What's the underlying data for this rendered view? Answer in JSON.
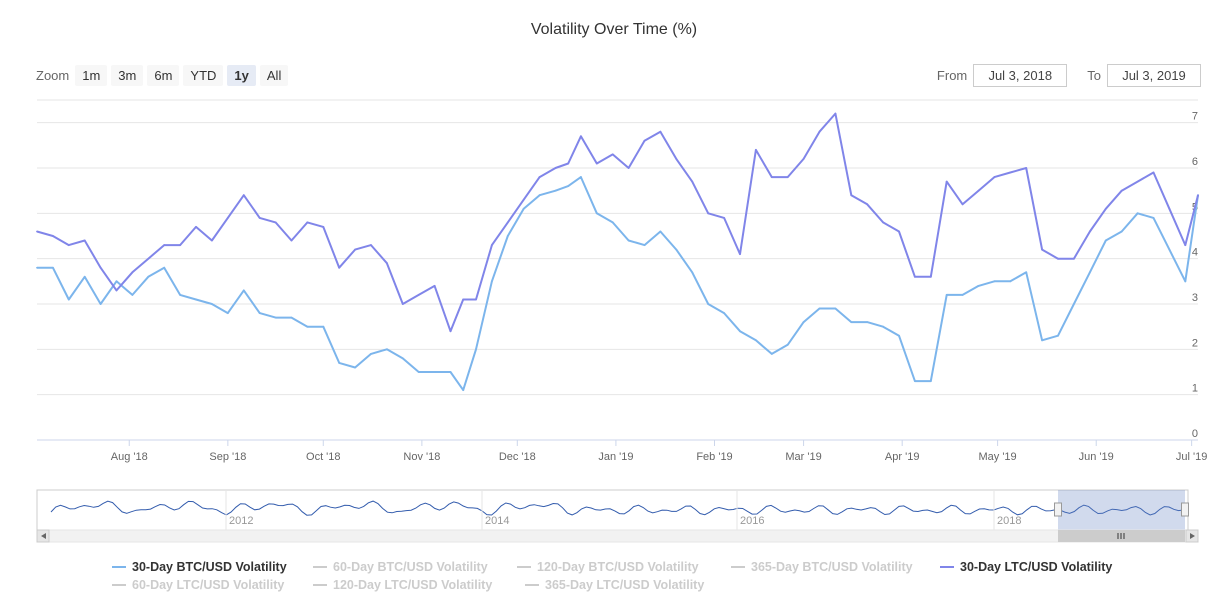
{
  "title": "Volatility Over Time (%)",
  "zoom": {
    "label": "Zoom",
    "buttons": [
      "1m",
      "3m",
      "6m",
      "YTD",
      "1y",
      "All"
    ],
    "active": "1y"
  },
  "range": {
    "from_label": "From",
    "from_value": "Jul 3, 2018",
    "to_label": "To",
    "to_value": "Jul 3, 2019"
  },
  "navigator": {
    "year_labels": [
      "2012",
      "2014",
      "2016",
      "2018"
    ]
  },
  "legend": [
    {
      "label": "30-Day BTC/USD Volatility",
      "color": "#7cb5ec",
      "visible": true
    },
    {
      "label": "60-Day BTC/USD Volatility",
      "color": "#cccccc",
      "visible": false
    },
    {
      "label": "120-Day BTC/USD Volatility",
      "color": "#cccccc",
      "visible": false
    },
    {
      "label": "365-Day BTC/USD Volatility",
      "color": "#cccccc",
      "visible": false
    },
    {
      "label": "30-Day LTC/USD Volatility",
      "color": "#8085e9",
      "visible": true
    },
    {
      "label": "60-Day LTC/USD Volatility",
      "color": "#cccccc",
      "visible": false
    },
    {
      "label": "120-Day LTC/USD Volatility",
      "color": "#cccccc",
      "visible": false
    },
    {
      "label": "365-Day LTC/USD Volatility",
      "color": "#cccccc",
      "visible": false
    }
  ],
  "chart_data": {
    "type": "line",
    "title": "Volatility Over Time (%)",
    "xlabel": "",
    "ylabel": "",
    "ylim": [
      0,
      7.5
    ],
    "y_ticks": [
      0,
      1,
      2,
      3,
      4,
      5,
      6,
      7
    ],
    "x_ticks": [
      "Aug '18",
      "Sep '18",
      "Oct '18",
      "Nov '18",
      "Dec '18",
      "Jan '19",
      "Feb '19",
      "Mar '19",
      "Apr '19",
      "May '19",
      "Jun '19",
      "Jul '19"
    ],
    "x_start": "2018-07-03",
    "x_end": "2019-07-03",
    "grid": true,
    "legend_position": "bottom",
    "series": [
      {
        "name": "30-Day BTC/USD Volatility",
        "color": "#7cb5ec",
        "x": [
          "2018-07-03",
          "2018-07-08",
          "2018-07-13",
          "2018-07-18",
          "2018-07-23",
          "2018-07-28",
          "2018-08-02",
          "2018-08-07",
          "2018-08-12",
          "2018-08-17",
          "2018-08-22",
          "2018-08-27",
          "2018-09-01",
          "2018-09-06",
          "2018-09-11",
          "2018-09-16",
          "2018-09-21",
          "2018-09-26",
          "2018-10-01",
          "2018-10-06",
          "2018-10-11",
          "2018-10-16",
          "2018-10-21",
          "2018-10-26",
          "2018-10-31",
          "2018-11-05",
          "2018-11-10",
          "2018-11-14",
          "2018-11-18",
          "2018-11-23",
          "2018-11-28",
          "2018-12-03",
          "2018-12-08",
          "2018-12-13",
          "2018-12-17",
          "2018-12-21",
          "2018-12-26",
          "2018-12-31",
          "2019-01-05",
          "2019-01-10",
          "2019-01-15",
          "2019-01-20",
          "2019-01-25",
          "2019-01-30",
          "2019-02-04",
          "2019-02-09",
          "2019-02-14",
          "2019-02-19",
          "2019-02-24",
          "2019-03-01",
          "2019-03-06",
          "2019-03-11",
          "2019-03-16",
          "2019-03-21",
          "2019-03-26",
          "2019-03-31",
          "2019-04-05",
          "2019-04-10",
          "2019-04-15",
          "2019-04-20",
          "2019-04-25",
          "2019-04-30",
          "2019-05-05",
          "2019-05-10",
          "2019-05-15",
          "2019-05-20",
          "2019-05-25",
          "2019-05-30",
          "2019-06-04",
          "2019-06-09",
          "2019-06-14",
          "2019-06-19",
          "2019-06-24",
          "2019-06-29",
          "2019-07-03"
        ],
        "y": [
          3.8,
          3.8,
          3.1,
          3.6,
          3.0,
          3.5,
          3.2,
          3.6,
          3.8,
          3.2,
          3.1,
          3.0,
          2.8,
          3.3,
          2.8,
          2.7,
          2.7,
          2.5,
          2.5,
          1.7,
          1.6,
          1.9,
          2.0,
          1.8,
          1.5,
          1.5,
          1.5,
          1.1,
          2.0,
          3.5,
          4.5,
          5.1,
          5.4,
          5.5,
          5.6,
          5.8,
          5.0,
          4.8,
          4.4,
          4.3,
          4.6,
          4.2,
          3.7,
          3.0,
          2.8,
          2.4,
          2.2,
          1.9,
          2.1,
          2.6,
          2.9,
          2.9,
          2.6,
          2.6,
          2.5,
          2.3,
          1.3,
          1.3,
          3.2,
          3.2,
          3.4,
          3.5,
          3.5,
          3.7,
          2.2,
          2.3,
          3.0,
          3.7,
          4.4,
          4.6,
          5.0,
          4.9,
          4.2,
          3.5,
          5.4
        ]
      },
      {
        "name": "30-Day LTC/USD Volatility",
        "color": "#8085e9",
        "x": [
          "2018-07-03",
          "2018-07-08",
          "2018-07-13",
          "2018-07-18",
          "2018-07-23",
          "2018-07-28",
          "2018-08-02",
          "2018-08-07",
          "2018-08-12",
          "2018-08-17",
          "2018-08-22",
          "2018-08-27",
          "2018-09-01",
          "2018-09-06",
          "2018-09-11",
          "2018-09-16",
          "2018-09-21",
          "2018-09-26",
          "2018-10-01",
          "2018-10-06",
          "2018-10-11",
          "2018-10-16",
          "2018-10-21",
          "2018-10-26",
          "2018-10-31",
          "2018-11-05",
          "2018-11-10",
          "2018-11-14",
          "2018-11-18",
          "2018-11-23",
          "2018-11-28",
          "2018-12-03",
          "2018-12-08",
          "2018-12-13",
          "2018-12-17",
          "2018-12-21",
          "2018-12-26",
          "2018-12-31",
          "2019-01-05",
          "2019-01-10",
          "2019-01-15",
          "2019-01-20",
          "2019-01-25",
          "2019-01-30",
          "2019-02-04",
          "2019-02-09",
          "2019-02-14",
          "2019-02-19",
          "2019-02-24",
          "2019-03-01",
          "2019-03-06",
          "2019-03-11",
          "2019-03-16",
          "2019-03-21",
          "2019-03-26",
          "2019-03-31",
          "2019-04-05",
          "2019-04-10",
          "2019-04-15",
          "2019-04-20",
          "2019-04-25",
          "2019-04-30",
          "2019-05-05",
          "2019-05-10",
          "2019-05-15",
          "2019-05-20",
          "2019-05-25",
          "2019-05-30",
          "2019-06-04",
          "2019-06-09",
          "2019-06-14",
          "2019-06-19",
          "2019-06-24",
          "2019-06-29",
          "2019-07-03"
        ],
        "y": [
          4.6,
          4.5,
          4.3,
          4.4,
          3.8,
          3.3,
          3.7,
          4.0,
          4.3,
          4.3,
          4.7,
          4.4,
          4.9,
          5.4,
          4.9,
          4.8,
          4.4,
          4.8,
          4.7,
          3.8,
          4.2,
          4.3,
          3.9,
          3.0,
          3.2,
          3.4,
          2.4,
          3.1,
          3.1,
          4.3,
          4.8,
          5.3,
          5.8,
          6.0,
          6.1,
          6.7,
          6.1,
          6.3,
          6.0,
          6.6,
          6.8,
          6.2,
          5.7,
          5.0,
          4.9,
          4.1,
          6.4,
          5.8,
          5.8,
          6.2,
          6.8,
          7.2,
          5.4,
          5.2,
          4.8,
          4.6,
          3.6,
          3.6,
          5.7,
          5.2,
          5.5,
          5.8,
          5.9,
          6.0,
          4.2,
          4.0,
          4.0,
          4.6,
          5.1,
          5.5,
          5.7,
          5.9,
          5.1,
          4.3,
          5.4
        ]
      }
    ]
  }
}
